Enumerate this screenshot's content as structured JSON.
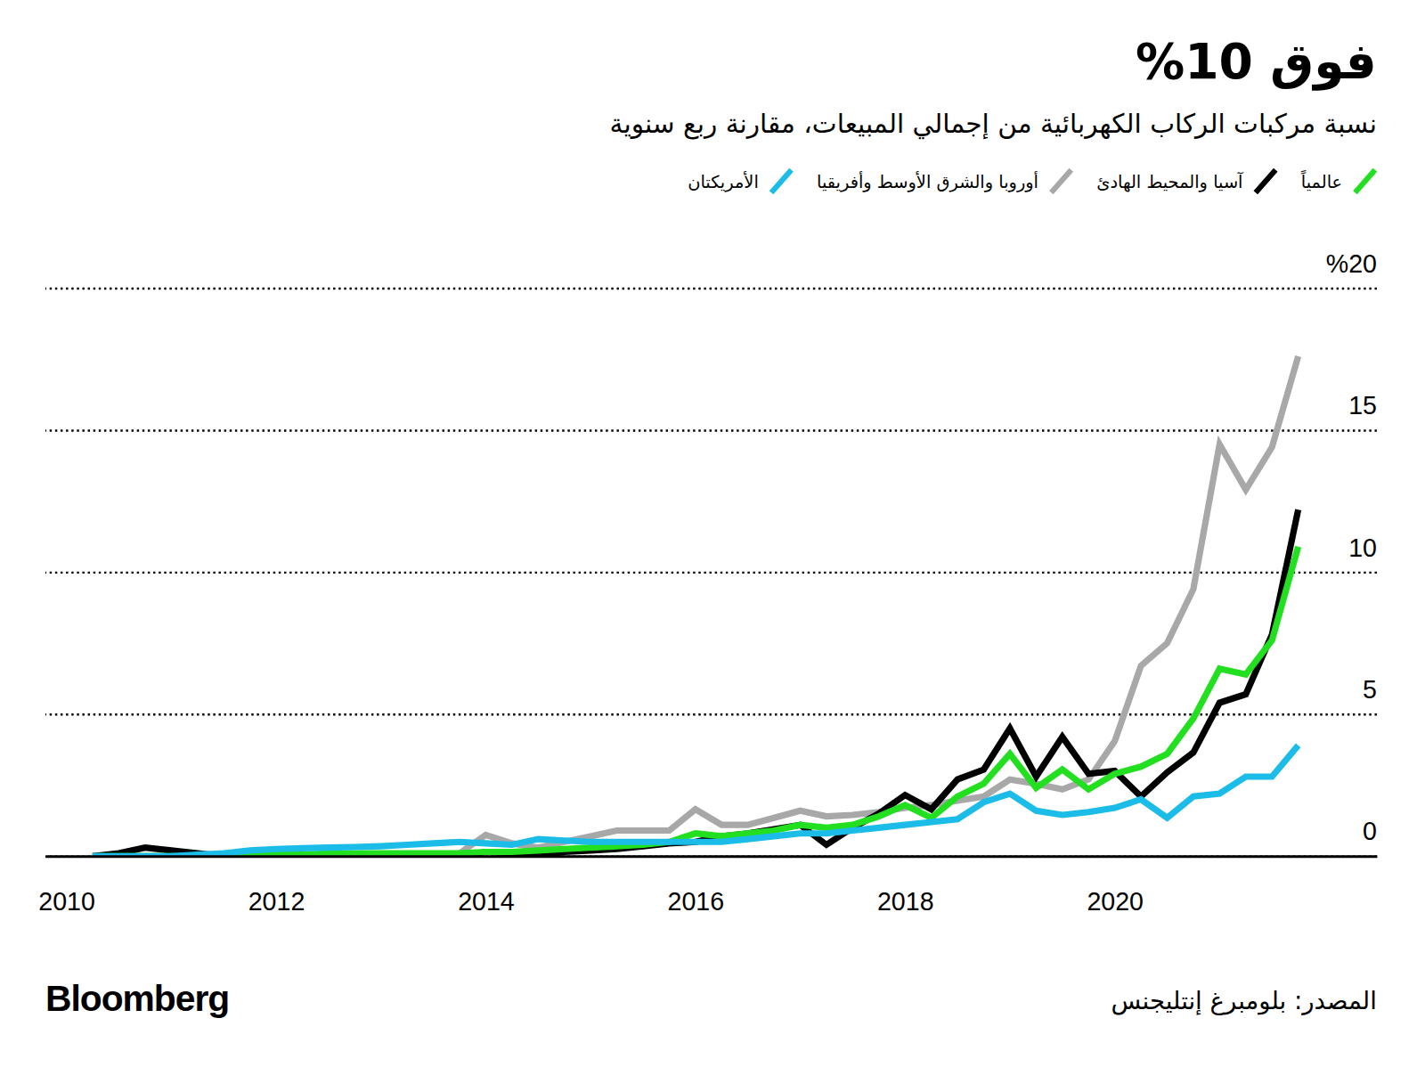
{
  "chart_data": {
    "type": "line",
    "title": "فوق 10%",
    "subtitle": "نسبة مركبات الركاب الكهربائية من إجمالي المبيعات، مقارنة ربع سنوية",
    "source": "المصدر: بلومبرغ إنتليجنس",
    "brand": "Bloomberg",
    "legend": "top-right",
    "grid": true,
    "x": [
      2010.25,
      2010.5,
      2010.75,
      2011,
      2011.25,
      2011.5,
      2011.75,
      2012,
      2012.25,
      2012.5,
      2012.75,
      2013,
      2013.25,
      2013.5,
      2013.75,
      2014,
      2014.25,
      2014.5,
      2014.75,
      2015,
      2015.25,
      2015.5,
      2015.75,
      2016,
      2016.25,
      2016.5,
      2016.75,
      2017,
      2017.25,
      2017.5,
      2017.75,
      2018,
      2018.25,
      2018.5,
      2018.75,
      2019,
      2019.25,
      2019.5,
      2019.75,
      2020,
      2020.25,
      2020.5,
      2020.75,
      2021,
      2021.25,
      2021.5,
      2021.75
    ],
    "xlim": [
      2009.8,
      2022.5
    ],
    "xticks": [
      2010,
      2012,
      2014,
      2016,
      2018,
      2020
    ],
    "ylim": [
      0,
      20
    ],
    "yticks": [
      0,
      5,
      10,
      15,
      {
        "value": 20,
        "label": "%20"
      }
    ],
    "series": [
      {
        "name": "عالمياً",
        "color": "#22e01f",
        "values": [
          0,
          0,
          0,
          0,
          0,
          0,
          0.05,
          0.05,
          0.05,
          0.1,
          0.1,
          0.1,
          0.1,
          0.1,
          0.1,
          0.15,
          0.15,
          0.2,
          0.25,
          0.3,
          0.35,
          0.4,
          0.5,
          0.8,
          0.7,
          0.8,
          0.9,
          1.1,
          1.0,
          1.1,
          1.4,
          1.8,
          1.35,
          2.1,
          2.55,
          3.6,
          2.4,
          3.05,
          2.35,
          2.9,
          3.15,
          3.6,
          4.85,
          6.6,
          6.4,
          7.6,
          10.9
        ]
      },
      {
        "name": "آسيا والمحيط الهادئ",
        "color": "#000000",
        "values": [
          0,
          0.1,
          0.3,
          0.2,
          0.1,
          0,
          0,
          0,
          0,
          0,
          0,
          0,
          0,
          0,
          0,
          0.15,
          0.1,
          0,
          0.15,
          0.2,
          0.25,
          0.35,
          0.45,
          0.5,
          0.7,
          0.8,
          0.95,
          1.1,
          0.4,
          1.0,
          1.5,
          2.15,
          1.65,
          2.7,
          3.05,
          4.5,
          2.8,
          4.2,
          2.9,
          3.0,
          2.1,
          2.95,
          3.65,
          5.4,
          5.7,
          7.8,
          12.2
        ]
      },
      {
        "name": "أوروبا والشرق الأوسط وأفريقيا",
        "color": "#a8a8a8",
        "values": [
          0,
          0,
          0,
          0,
          0,
          0,
          0,
          0,
          0,
          0,
          0,
          0,
          0,
          0,
          0.1,
          0.75,
          0.45,
          0.3,
          0.5,
          0.7,
          0.9,
          0.9,
          0.9,
          1.65,
          1.1,
          1.1,
          1.35,
          1.6,
          1.4,
          1.45,
          1.55,
          1.7,
          1.8,
          1.95,
          2.1,
          2.7,
          2.55,
          2.35,
          2.7,
          4.05,
          6.7,
          7.5,
          9.4,
          14.5,
          12.9,
          14.4,
          17.6
        ]
      },
      {
        "name": "الأمريكتان",
        "color": "#1bbde8",
        "values": [
          0,
          0,
          0,
          0,
          0.05,
          0.1,
          0.2,
          0.25,
          0.28,
          0.3,
          0.32,
          0.35,
          0.4,
          0.45,
          0.5,
          0.45,
          0.4,
          0.6,
          0.55,
          0.5,
          0.5,
          0.5,
          0.5,
          0.5,
          0.5,
          0.6,
          0.7,
          0.8,
          0.8,
          0.9,
          1.0,
          1.1,
          1.2,
          1.3,
          1.9,
          2.2,
          1.6,
          1.45,
          1.55,
          1.7,
          2.0,
          1.35,
          2.1,
          2.2,
          2.8,
          2.8,
          3.9
        ]
      }
    ]
  }
}
